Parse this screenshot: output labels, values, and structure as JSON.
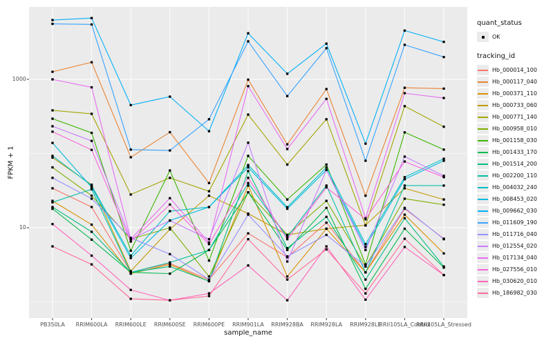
{
  "axes": {
    "ylabel": "FPKM + 1",
    "xlabel": "sample_name"
  },
  "legend": {
    "quant_status_title": "quant_status",
    "quant_status_items": [
      {
        "label": "OK"
      }
    ],
    "tracking_id_title": "tracking_id"
  },
  "chart_data": {
    "type": "line",
    "title": "",
    "xlabel": "sample_name",
    "ylabel": "FPKM + 1",
    "y_scale": "log10",
    "ylim": [
      1,
      9500
    ],
    "y_major_ticks": [
      1000,
      10
    ],
    "y_minor_ticks": [
      10000,
      100,
      1
    ],
    "grid": true,
    "legend_position": "right",
    "point_color": "#000000",
    "categories": [
      "PB350LA",
      "RRIM600LA",
      "RRIM600LE",
      "RRIM600SE",
      "RRIM600PE",
      "RRIM901LA",
      "RRIM928BA",
      "RRIM928LA",
      "RRIM928LE",
      "RRII105LA_Control",
      "RRII105LA_Stressed"
    ],
    "series": [
      {
        "name": "Hb_000014_100",
        "color": "#F8766D",
        "values": [
          34,
          19,
          2.5,
          3.3,
          2.0,
          8.4,
          4.0,
          11.7,
          2.5,
          18,
          7.1
        ]
      },
      {
        "name": "Hb_000117_040",
        "color": "#EA8331",
        "values": [
          1265,
          1700,
          89,
          194,
          40,
          990,
          133,
          740,
          27,
          770,
          750
        ]
      },
      {
        "name": "Hb_000371_110",
        "color": "#D89000",
        "values": [
          23,
          11,
          2.4,
          3.2,
          1.9,
          37,
          2.2,
          9.7,
          2.5,
          15,
          4.5
        ]
      },
      {
        "name": "Hb_000733_060",
        "color": "#C09B00",
        "values": [
          88,
          38,
          2.6,
          9.5,
          27,
          15.5,
          8.0,
          9.7,
          10.8,
          34,
          24
        ]
      },
      {
        "name": "Hb_000771_140",
        "color": "#A3A500",
        "values": [
          382,
          343,
          28,
          47,
          31,
          335,
          71,
          290,
          10.7,
          435,
          230
        ]
      },
      {
        "name": "Hb_000958_010",
        "color": "#7CAE00",
        "values": [
          65,
          27,
          7.0,
          10,
          2.2,
          30,
          8.0,
          23,
          3.0,
          24.6,
          20.4
        ]
      },
      {
        "name": "Hb_001158_030",
        "color": "#39B600",
        "values": [
          295,
          190,
          4.9,
          59,
          3.6,
          93,
          24,
          71,
          3.2,
          193,
          113
        ]
      },
      {
        "name": "Hb_001433_170",
        "color": "#00BB4E",
        "values": [
          18,
          6.9,
          2.5,
          2.4,
          5.0,
          30,
          5.0,
          18.5,
          1.5,
          9.7,
          2.9
        ]
      },
      {
        "name": "Hb_001514_200",
        "color": "#00BF7D",
        "values": [
          19,
          8.8,
          2.5,
          3.0,
          1.9,
          58,
          5.3,
          14,
          2.0,
          13.4,
          3.0
        ]
      },
      {
        "name": "Hb_002200_110",
        "color": "#00C1A3",
        "values": [
          22,
          33,
          2.5,
          3.4,
          5.0,
          40,
          7.5,
          37,
          2.5,
          37,
          37
        ]
      },
      {
        "name": "Hb_004032_240",
        "color": "#00BFC4",
        "values": [
          93,
          37,
          4.2,
          16.7,
          19,
          70,
          18.9,
          65,
          6.0,
          48,
          85
        ]
      },
      {
        "name": "Hb_008453_020",
        "color": "#00BAE0",
        "values": [
          139,
          35,
          3.9,
          12.5,
          19,
          65,
          18,
          60,
          5.5,
          45,
          80
        ]
      },
      {
        "name": "Hb_009662_030",
        "color": "#00B0F6",
        "values": [
          6300,
          6700,
          450,
          585,
          200,
          4180,
          1190,
          3030,
          136,
          4550,
          3200
        ]
      },
      {
        "name": "Hb_011609_190",
        "color": "#35A2FF",
        "values": [
          5600,
          5500,
          113,
          110,
          290,
          3250,
          595,
          2630,
          80,
          2920,
          2000
        ]
      },
      {
        "name": "Hb_011716_040",
        "color": "#9590FF",
        "values": [
          47,
          24.6,
          7.3,
          4.4,
          2.0,
          15,
          4.1,
          8.0,
          3.0,
          18.5,
          7.0
        ]
      },
      {
        "name": "Hb_012554_020",
        "color": "#C77CFF",
        "values": [
          233,
          148,
          7.0,
          12.5,
          7.0,
          140,
          3.5,
          60,
          5.0,
          91,
          50
        ]
      },
      {
        "name": "Hb_017134_040",
        "color": "#E76BF3",
        "values": [
          1000,
          780,
          7.0,
          25,
          6.3,
          810,
          115,
          545,
          13.4,
          650,
          560
        ]
      },
      {
        "name": "Hb_027556_010",
        "color": "#FA62DB",
        "values": [
          197,
          112,
          6.5,
          20.5,
          6.0,
          47,
          7.0,
          35,
          13,
          78,
          48
        ]
      },
      {
        "name": "Hb_030620_010",
        "color": "#FF62BC",
        "values": [
          11.2,
          4.2,
          1.45,
          1.05,
          1.3,
          3.1,
          1.05,
          5.6,
          1.07,
          5.5,
          2.3
        ]
      },
      {
        "name": "Hb_186982_030",
        "color": "#FF6A98",
        "values": [
          5.6,
          3.2,
          1.1,
          1.05,
          1.2,
          7.0,
          2.0,
          5.1,
          1.3,
          7.1,
          2.3
        ]
      }
    ]
  }
}
